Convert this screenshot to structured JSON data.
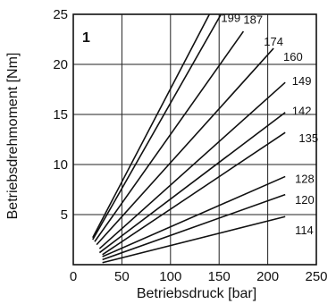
{
  "chart_data": {
    "type": "line",
    "title": "",
    "panel_label": "1",
    "xlabel": "Betriebsdruck [bar]",
    "ylabel": "Betriebsdrehmoment [Nm]",
    "xlim": [
      0,
      250
    ],
    "ylim": [
      0,
      25
    ],
    "xticks": [
      "0",
      "50",
      "100",
      "150",
      "200",
      "250"
    ],
    "yticks": [
      "5",
      "10",
      "15",
      "20",
      "25"
    ],
    "grid": true,
    "line_color": "#111111",
    "series": [
      {
        "name": "199",
        "points": [
          [
            20,
            2.7
          ],
          [
            140,
            25
          ]
        ]
      },
      {
        "name": "187",
        "points": [
          [
            20,
            2.5
          ],
          [
            152,
            25
          ]
        ]
      },
      {
        "name": "174",
        "points": [
          [
            22,
            2.3
          ],
          [
            175,
            23.3
          ]
        ]
      },
      {
        "name": "160",
        "points": [
          [
            24,
            2.0
          ],
          [
            206,
            21.6
          ]
        ]
      },
      {
        "name": "149",
        "points": [
          [
            27,
            1.6
          ],
          [
            218,
            18.2
          ]
        ]
      },
      {
        "name": "142",
        "points": [
          [
            27,
            1.2
          ],
          [
            218,
            15.2
          ]
        ]
      },
      {
        "name": "135",
        "points": [
          [
            30,
            1.0
          ],
          [
            218,
            13.2
          ]
        ]
      },
      {
        "name": "128",
        "points": [
          [
            30,
            0.8
          ],
          [
            218,
            8.8
          ]
        ]
      },
      {
        "name": "120",
        "points": [
          [
            30,
            0.5
          ],
          [
            218,
            7.0
          ]
        ]
      },
      {
        "name": "114",
        "points": [
          [
            30,
            0.2
          ],
          [
            218,
            4.8
          ]
        ]
      }
    ],
    "series_label_anchor": [
      [
        152,
        24.7
      ],
      [
        175,
        24.5
      ],
      [
        196,
        22.3
      ],
      [
        216,
        20.8
      ],
      [
        225,
        18.4
      ],
      [
        225,
        15.4
      ],
      [
        232,
        12.7
      ],
      [
        228,
        8.6
      ],
      [
        228,
        6.5
      ],
      [
        228,
        3.5
      ]
    ]
  }
}
